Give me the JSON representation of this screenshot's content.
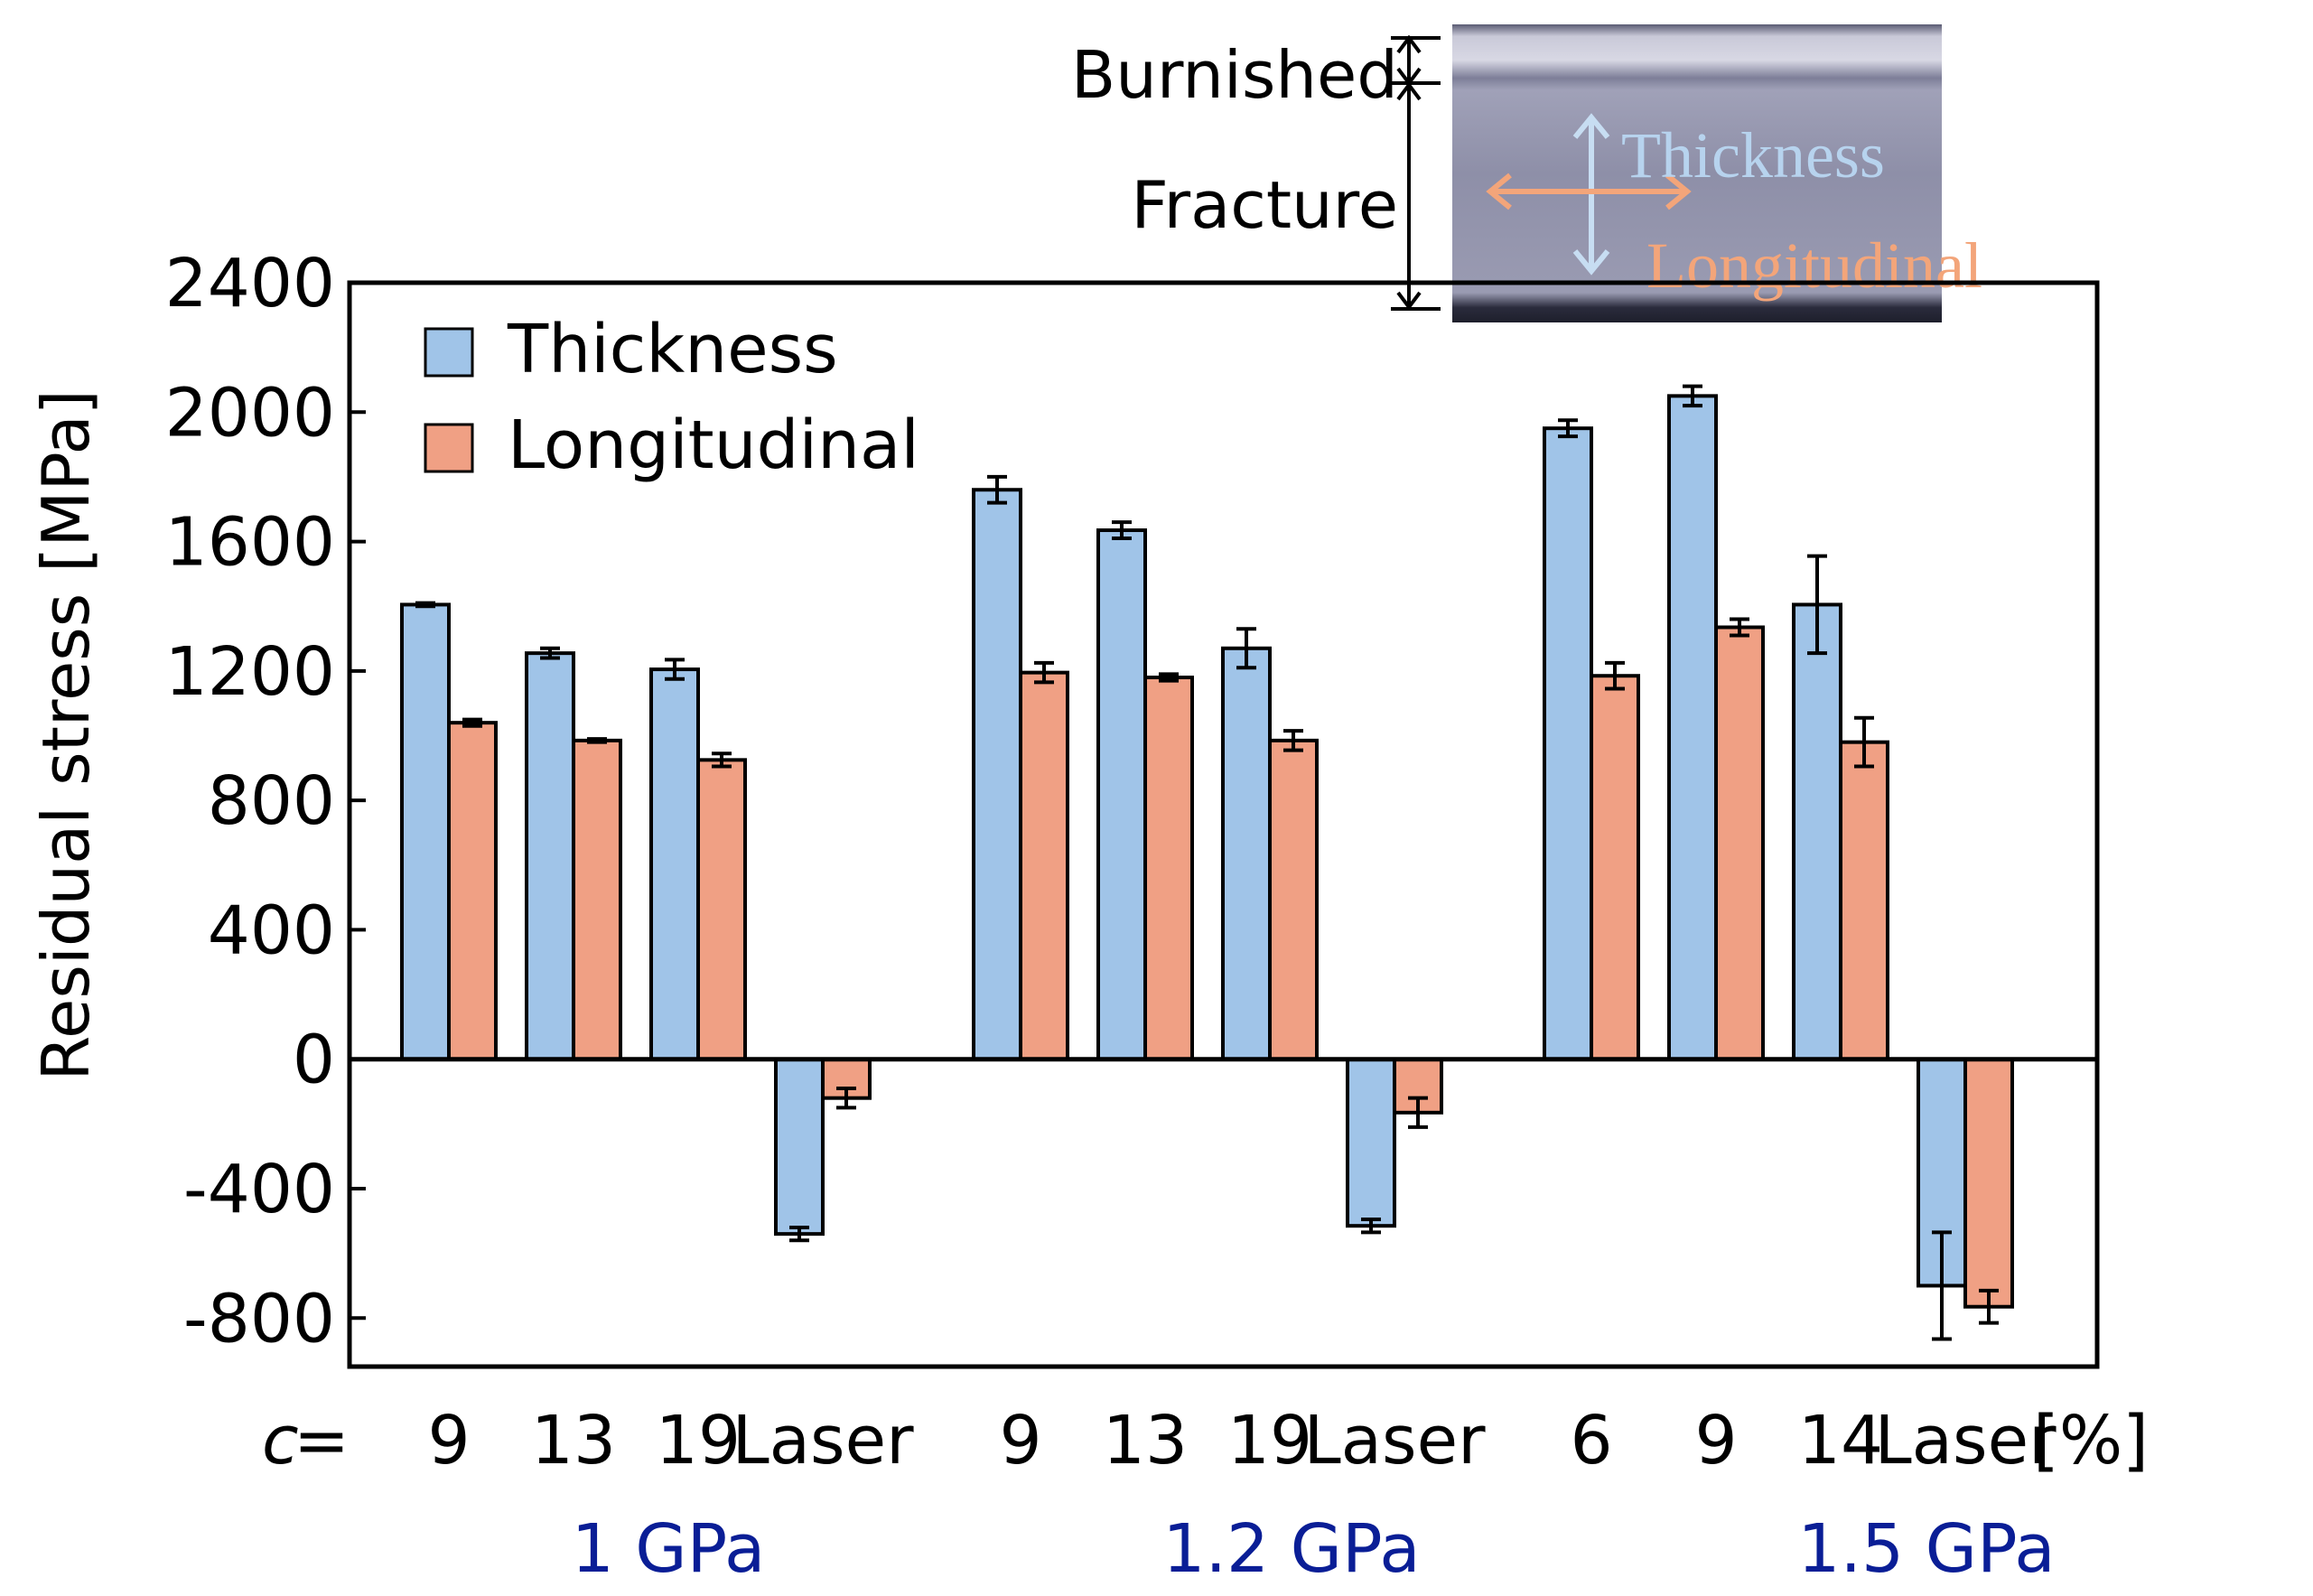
{
  "chart_data": {
    "type": "bar",
    "ylabel": "Residual stress [MPa]",
    "ylim": [
      -950,
      2400
    ],
    "yticks": [
      2400,
      2000,
      1600,
      1200,
      800,
      400,
      0,
      -400,
      -800
    ],
    "ytick_labels": [
      "2400",
      "2000",
      "1600",
      "1200",
      "800",
      "400",
      "0",
      "-400",
      "-800"
    ],
    "x_prefix": "c",
    "x_prefix_eq": " =",
    "x_unit": "[%]",
    "categories": [
      "9",
      "13",
      "19",
      "Laser",
      "9",
      "13",
      "19",
      "Laser",
      "6",
      "9",
      "14",
      "Laser"
    ],
    "groups": [
      {
        "label": "1 GPa",
        "categories": [
          "9",
          "13",
          "19",
          "Laser"
        ]
      },
      {
        "label": "1.2 GPa",
        "categories": [
          "9",
          "13",
          "19",
          "Laser"
        ]
      },
      {
        "label": "1.5 GPa",
        "categories": [
          "6",
          "9",
          "14",
          "Laser"
        ]
      }
    ],
    "series": [
      {
        "name": "Thickness",
        "color": "#a0c4e8",
        "values": [
          1405,
          1255,
          1205,
          -540,
          1760,
          1635,
          1270,
          -515,
          1950,
          2050,
          1405,
          -700
        ],
        "errors": [
          5,
          15,
          30,
          20,
          40,
          25,
          60,
          20,
          25,
          30,
          150,
          165
        ]
      },
      {
        "name": "Longitudinal",
        "color": "#f0a084",
        "values": [
          1040,
          985,
          925,
          -120,
          1195,
          1180,
          985,
          -165,
          1185,
          1335,
          980,
          -765
        ],
        "errors": [
          10,
          5,
          20,
          30,
          30,
          10,
          30,
          45,
          40,
          25,
          75,
          50
        ]
      }
    ],
    "legend": {
      "placement": "top-left",
      "entries": [
        "Thickness",
        "Longitudinal"
      ]
    },
    "grid": false
  },
  "inset": {
    "labels": {
      "burnished": "Burnished",
      "fracture": "Fracture",
      "thickness": "Thickness",
      "longitudinal": "Longitudinal"
    },
    "colors": {
      "thickness_arrow": "#c7ddf2",
      "longitudinal_arrow": "#f3a57a",
      "micrograph": "#8c8da8"
    }
  }
}
